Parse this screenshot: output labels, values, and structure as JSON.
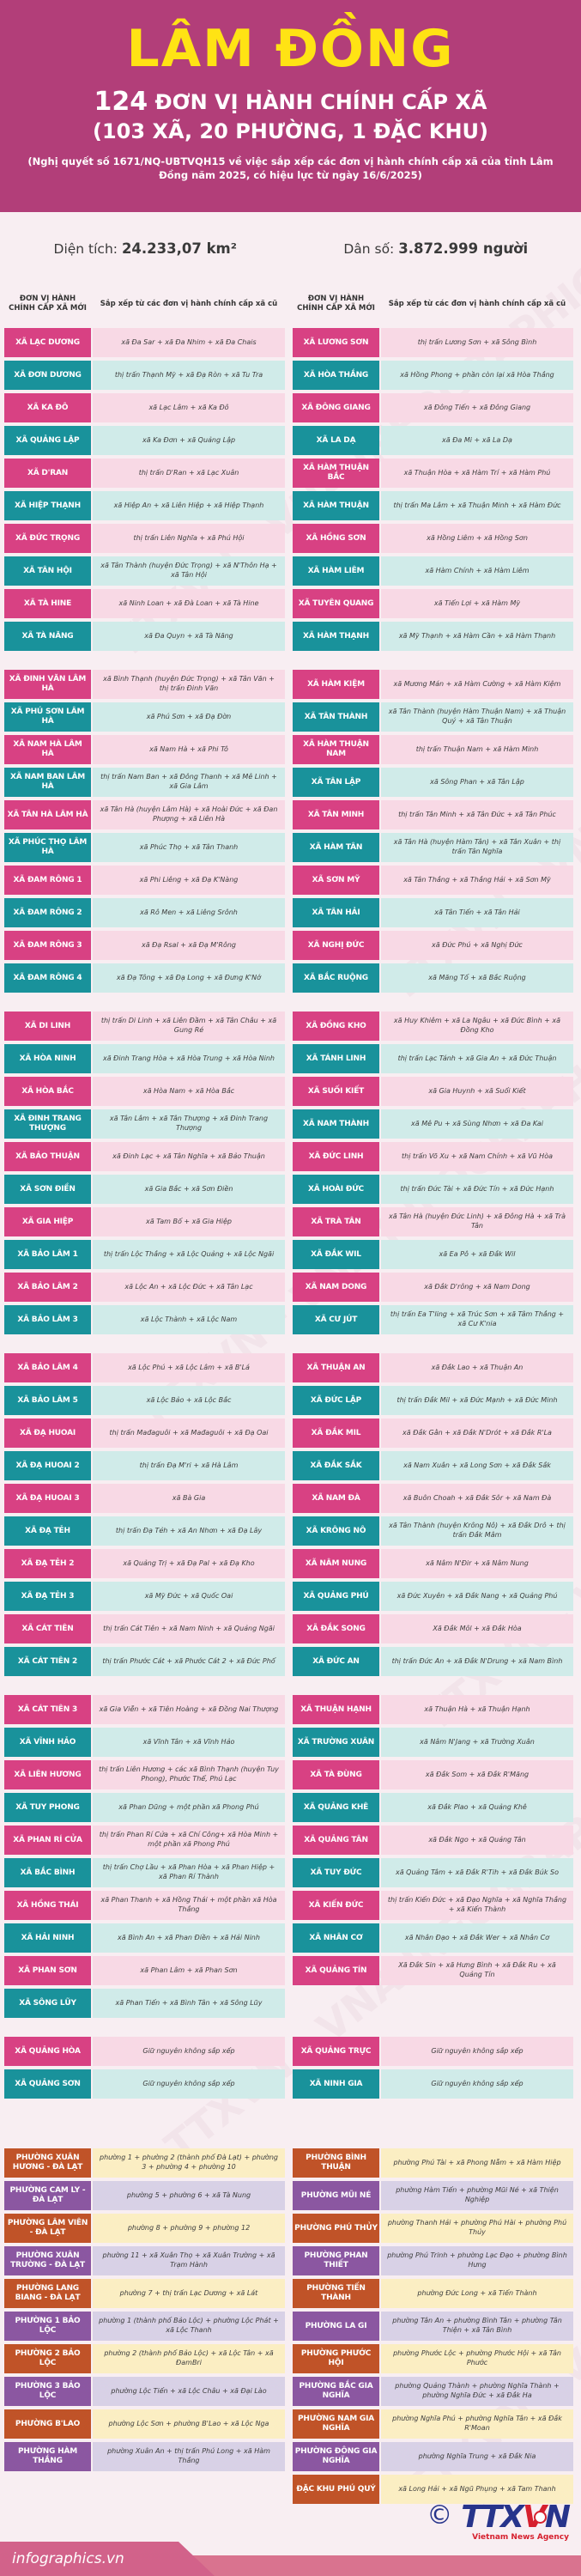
{
  "header": {
    "title": "LÂM ĐỒNG",
    "subtitle_count": "124",
    "subtitle_rest": "ĐƠN VỊ HÀNH CHÍNH CẤP XÃ",
    "subtitle_detail": "(103 XÃ, 20 PHƯỜNG, 1 ĐẶC KHU)",
    "note": "(Nghị quyết số 1671/NQ-UBTVQH15 về việc sắp xếp các đơn vị hành chính cấp xã của tỉnh Lâm Đồng năm 2025, có hiệu lực từ ngày 16/6/2025)"
  },
  "stats": {
    "area_label": "Diện tích:",
    "area_value": "24.233,07 km²",
    "pop_label": "Dân số:",
    "pop_value": "3.872.999 người"
  },
  "column_headers": {
    "new_unit": "ĐƠN VỊ HÀNH CHÍNH CẤP XÃ MỚI",
    "source_units": "Sắp xếp từ các đơn vị hành chính cấp xã cũ"
  },
  "commune_groups": [
    {
      "bands": [
        {
          "left": {
            "name": "XÃ LẠC DƯƠNG",
            "from": "xã Đa Sar + xã Đa Nhim + xã Đa Chais"
          },
          "right": {
            "name": "XÃ LƯƠNG SƠN",
            "from": "thị trấn Lương Sơn + xã Sông Bình"
          }
        },
        {
          "left": {
            "name": "XÃ ĐƠN DƯƠNG",
            "from": "thị trấn Thạnh Mỹ + xã Đạ Ròn + xã Tu Tra"
          },
          "right": {
            "name": "XÃ HÒA THẮNG",
            "from": "xã Hồng Phong + phần còn lại xã Hòa Thắng"
          }
        },
        {
          "left": {
            "name": "XÃ KA ĐÔ",
            "from": "xã Lạc Lâm + xã Ka Đô"
          },
          "right": {
            "name": "XÃ ĐÔNG GIANG",
            "from": "xã Đông Tiến + xã Đông Giang"
          }
        },
        {
          "left": {
            "name": "XÃ QUẢNG LẬP",
            "from": "xã Ka Đơn + xã Quảng Lập"
          },
          "right": {
            "name": "XÃ LA DẠ",
            "from": "xã Đa Mi + xã La Dạ"
          }
        },
        {
          "left": {
            "name": "XÃ D'RAN",
            "from": "thị trấn D'Ran + xã Lạc Xuân"
          },
          "right": {
            "name": "XÃ HÀM THUẬN BẮC",
            "from": "xã Thuận Hòa + xã Hàm Trí + xã Hàm Phú"
          }
        },
        {
          "left": {
            "name": "XÃ HIỆP THẠNH",
            "from": "xã Hiệp An + xã Liên Hiệp + xã Hiệp Thạnh"
          },
          "right": {
            "name": "XÃ HÀM THUẬN",
            "from": "thị trấn Ma Lâm + xã Thuận Minh + xã Hàm Đức"
          }
        },
        {
          "left": {
            "name": "XÃ ĐỨC TRỌNG",
            "from": "thị trấn Liên Nghĩa + xã Phú Hội"
          },
          "right": {
            "name": "XÃ HỒNG SƠN",
            "from": "xã Hồng Liêm + xã Hồng Sơn"
          }
        },
        {
          "left": {
            "name": "XÃ TÂN HỘI",
            "from": "xã Tân Thành (huyện Đức Trọng) + xã N'Thôn Hạ + xã Tân Hội"
          },
          "right": {
            "name": "XÃ HÀM LIÊM",
            "from": "xã Hàm Chính + xã Hàm Liêm"
          }
        },
        {
          "left": {
            "name": "XÃ TÀ HINE",
            "from": "xã Ninh Loan + xã Đà Loan + xã Tà Hine"
          },
          "right": {
            "name": "XÃ TUYÊN QUANG",
            "from": "xã Tiến Lợi + xã Hàm Mỹ"
          }
        },
        {
          "left": {
            "name": "XÃ TÀ NĂNG",
            "from": "xã Đa Quyn +  xã Tà Năng"
          },
          "right": {
            "name": "XÃ HÀM THẠNH",
            "from": "xã Mỹ Thạnh + xã Hàm Cần + xã Hàm Thạnh"
          }
        }
      ]
    },
    {
      "bands": [
        {
          "left": {
            "name": "XÃ ĐINH VĂN LÂM HÀ",
            "from": "xã Bình Thạnh (huyện Đức Trọng) + xã Tân Văn + thị trấn Đinh Văn"
          },
          "right": {
            "name": "XÃ HÀM KIỆM",
            "from": "xã Mương Mán + xã Hàm Cường + xã Hàm Kiệm"
          }
        },
        {
          "left": {
            "name": "XÃ PHÚ SƠN LÂM HÀ",
            "from": "xã Phú Sơn + xã Đạ Đờn"
          },
          "right": {
            "name": "XÃ TÂN THÀNH",
            "from": "xã Tân Thành (huyện Hàm Thuận Nam) + xã Thuận Quý + xã Tân Thuận"
          }
        },
        {
          "left": {
            "name": "XÃ NAM HÀ LÂM HÀ",
            "from": "xã Nam Hà + xã Phi Tô"
          },
          "right": {
            "name": "XÃ HÀM THUẬN NAM",
            "from": "thị trấn Thuận Nam + xã Hàm Minh"
          }
        },
        {
          "left": {
            "name": "XÃ NAM BAN LÂM HÀ",
            "from": "thị trấn Nam Ban + xã Đông Thanh + xã Mê Linh + xã Gia Lâm"
          },
          "right": {
            "name": "XÃ TÂN LẬP",
            "from": "xã Sông Phan + xã Tân Lập"
          }
        },
        {
          "left": {
            "name": "XÃ TÂN HÀ LÂM HÀ",
            "from": "xã Tân Hà (huyện Lâm Hà) + xã Hoài Đức + xã Đan Phượng + xã Liên Hà"
          },
          "right": {
            "name": "XÃ TÂN MINH",
            "from": "thị trấn Tân Minh + xã Tân Đức + xã Tân Phúc"
          }
        },
        {
          "left": {
            "name": "XÃ PHÚC THỌ LÂM HÀ",
            "from": "xã Phúc Thọ + xã Tân Thanh"
          },
          "right": {
            "name": "XÃ HÀM TÂN",
            "from": "xã Tân Hà (huyện Hàm Tân) + xã Tân Xuân + thị trấn Tân Nghĩa"
          }
        },
        {
          "left": {
            "name": "XÃ ĐAM RÔNG 1",
            "from": "xã Phi Liêng + xã Đạ K'Nàng"
          },
          "right": {
            "name": "XÃ SƠN MỸ",
            "from": "xã Tân Thắng + xã Thắng Hải + xã Sơn Mỹ"
          }
        },
        {
          "left": {
            "name": "XÃ ĐAM RÔNG 2",
            "from": "xã Rô Men + xã Liêng Srônh"
          },
          "right": {
            "name": "XÃ TÂN HẢI",
            "from": "xã Tân Tiến + xã Tân Hải"
          }
        },
        {
          "left": {
            "name": "XÃ ĐAM RÔNG 3",
            "from": "xã Đạ Rsal + xã Đạ M'Rông"
          },
          "right": {
            "name": "XÃ NGHỊ ĐỨC",
            "from": "xã Đức Phú + xã Nghị Đức"
          }
        },
        {
          "left": {
            "name": "XÃ ĐAM RÔNG 4",
            "from": "xã Đạ Tông + xã Đạ Long + xã Đưng K'Nớ"
          },
          "right": {
            "name": "XÃ BẮC RUỘNG",
            "from": "xã Măng Tố + xã Bắc Ruộng"
          }
        }
      ]
    },
    {
      "bands": [
        {
          "left": {
            "name": "XÃ DI LINH",
            "from": "thị trấn Di Linh + xã Liên Đầm + xã Tân Châu + xã Gung Ré"
          },
          "right": {
            "name": "XÃ ĐỒNG KHO",
            "from": "xã Huy Khiêm + xã La Ngâu + xã Đức Bình + xã Đồng Kho"
          }
        },
        {
          "left": {
            "name": "XÃ HÒA NINH",
            "from": "xã Đinh Trang Hòa + xã Hòa Trung + xã Hòa Ninh"
          },
          "right": {
            "name": "XÃ TÁNH LINH",
            "from": "thị trấn Lạc Tánh + xã Gia An + xã Đức Thuận"
          }
        },
        {
          "left": {
            "name": "XÃ HÒA BẮC",
            "from": "xã Hòa Nam + xã Hòa Bắc"
          },
          "right": {
            "name": "XÃ SUỐI KIẾT",
            "from": "xã Gia Huynh + xã Suối Kiết"
          }
        },
        {
          "left": {
            "name": "XÃ ĐINH TRANG THƯỢNG",
            "from": "xã Tân Lâm + xã Tân Thượng + xã Đinh Trang Thượng"
          },
          "right": {
            "name": "XÃ NAM THÀNH",
            "from": "xã Mê Pu + xã Sùng Nhơn + xã Đa Kai"
          }
        },
        {
          "left": {
            "name": "XÃ BẢO THUẬN",
            "from": "xã Đinh Lạc + xã Tân Nghĩa + xã Bảo Thuận"
          },
          "right": {
            "name": "XÃ ĐỨC LINH",
            "from": "thị trấn Võ Xu + xã Nam Chính + xã Vũ Hòa"
          }
        },
        {
          "left": {
            "name": "XÃ SƠN ĐIỀN",
            "from": "xã Gia Bắc + xã Sơn Điền"
          },
          "right": {
            "name": "XÃ HOÀI ĐỨC",
            "from": "thị trấn Đức Tài + xã Đức Tín + xã Đức Hạnh"
          }
        },
        {
          "left": {
            "name": "XÃ GIA HIỆP",
            "from": "xã Tam Bố + xã Gia Hiệp"
          },
          "right": {
            "name": "XÃ TRÀ TÂN",
            "from": "xã Tân Hà (huyện Đức Linh) + xã Đông Hà + xã Trà Tân"
          }
        },
        {
          "left": {
            "name": "XÃ BẢO LÂM 1",
            "from": "thị trấn Lộc Thắng + xã Lộc Quảng + xã Lộc Ngãi"
          },
          "right": {
            "name": "XÃ ĐẮK WIL",
            "from": "xã Ea Pô + xã Đắk Wil"
          }
        },
        {
          "left": {
            "name": "XÃ BẢO LÂM 2",
            "from": "xã Lộc An + xã Lộc Đức + xã Tân Lạc"
          },
          "right": {
            "name": "XÃ NAM DONG",
            "from": "xã Đắk D'rông + xã Nam Dong"
          }
        },
        {
          "left": {
            "name": "XÃ BẢO LÂM 3",
            "from": "xã Lộc Thành + xã Lộc Nam"
          },
          "right": {
            "name": "XÃ CƯ JÚT",
            "from": "thị trấn Ea T'ling + xã Trúc Sơn + xã Tâm Thắng + xã Cư K'nia"
          }
        }
      ]
    },
    {
      "bands": [
        {
          "left": {
            "name": "XÃ BẢO LÂM 4",
            "from": "xã Lộc Phú + xã Lộc Lâm + xã B'Lá"
          },
          "right": {
            "name": "XÃ THUẬN AN",
            "from": "xã Đắk Lao + xã Thuận An"
          }
        },
        {
          "left": {
            "name": "XÃ BẢO LÂM 5",
            "from": "xã Lộc Bảo + xã Lộc Bắc"
          },
          "right": {
            "name": "XÃ ĐỨC LẬP",
            "from": "thị trấn Đắk Mil + xã Đức Mạnh + xã Đức Minh"
          }
        },
        {
          "left": {
            "name": "XÃ ĐẠ HUOAI",
            "from": "thị trấn Mađaguôi + xã Mađaguôi + xã Đạ Oai"
          },
          "right": {
            "name": "XÃ ĐẮK MIL",
            "from": "xã Đắk Gằn + xã Đắk N'Drót + xã Đắk R'La"
          }
        },
        {
          "left": {
            "name": "XÃ ĐẠ HUOAI 2",
            "from": "thị trấn Đạ M'ri + xã Hà Lâm"
          },
          "right": {
            "name": "XÃ ĐẮK SẮK",
            "from": "xã Nam Xuân + xã Long Sơn + xã Đắk Sắk"
          }
        },
        {
          "left": {
            "name": "XÃ ĐẠ HUOAI 3",
            "from": "xã Bà Gia"
          },
          "right": {
            "name": "XÃ NAM ĐÀ",
            "from": "xã Buôn Choah + xã Đắk Sôr + xã Nam Đà"
          }
        },
        {
          "left": {
            "name": "XÃ ĐẠ TẺH",
            "from": "thị trấn Đạ Tẻh + xã An Nhơn + xã Đạ Lây"
          },
          "right": {
            "name": "XÃ KRÔNG NÔ",
            "from": "xã Tân Thành (huyện Krông Nô) + xã Đắk Drô + thị trấn Đắk Mâm"
          }
        },
        {
          "left": {
            "name": "XÃ ĐẠ TẺH 2",
            "from": "xã Quảng Trị + xã Đạ Pal + xã Đạ Kho"
          },
          "right": {
            "name": "XÃ NÂM NUNG",
            "from": "xã Nâm N'Đir + xã Nâm Nung"
          }
        },
        {
          "left": {
            "name": "XÃ ĐẠ TẺH 3",
            "from": "xã Mỹ Đức + xã Quốc Oai"
          },
          "right": {
            "name": "XÃ QUẢNG PHÚ",
            "from": "xã Đức Xuyên + xã Đắk Nang + xã Quảng Phú"
          }
        },
        {
          "left": {
            "name": "XÃ CÁT TIÊN",
            "from": "thị trấn Cát Tiên + xã Nam Ninh + xã Quảng Ngãi"
          },
          "right": {
            "name": "XÃ ĐẮK SONG",
            "from": "Xã Đắk Môl + xã Đắk Hòa"
          }
        },
        {
          "left": {
            "name": "XÃ CÁT TIÊN 2",
            "from": "thị trấn Phước Cát + xã Phước Cát 2 + xã Đức Phổ"
          },
          "right": {
            "name": "XÃ ĐỨC AN",
            "from": "thị trấn Đức An + xã Đắk N'Drung + xã Nam Bình"
          }
        }
      ]
    },
    {
      "bands": [
        {
          "left": {
            "name": "XÃ CÁT TIÊN 3",
            "from": "xã Gia Viễn + xã Tiên Hoàng + xã Đồng Nai Thượng"
          },
          "right": {
            "name": "XÃ THUẬN HẠNH",
            "from": "xã Thuận Hà + xã Thuận Hạnh"
          }
        },
        {
          "left": {
            "name": "XÃ VĨNH HẢO",
            "from": "xã Vĩnh Tân + xã Vĩnh Hảo"
          },
          "right": {
            "name": "XÃ TRƯỜNG XUÂN",
            "from": "xã Nâm N'Jang + xã Trường Xuân"
          }
        },
        {
          "left": {
            "name": "XÃ LIÊN HƯƠNG",
            "from": "thị trấn Liên Hương + các xã Bình Thạnh (huyện Tuy Phong), Phước Thể, Phú Lạc"
          },
          "right": {
            "name": "XÃ TÀ ĐÙNG",
            "from": "xã Đắk Som + xã Đắk R'Măng"
          }
        },
        {
          "left": {
            "name": "XÃ TUY PHONG",
            "from": "xã Phan Dũng + một phần xã Phong Phú"
          },
          "right": {
            "name": "XÃ QUẢNG KHÊ",
            "from": "xã Đắk Plao + xã Quảng Khê"
          }
        },
        {
          "left": {
            "name": "XÃ PHAN RÍ CỬA",
            "from": "thị trấn Phan Rí Cửa + xã Chí Công+ xã Hòa Minh + một phần xã Phong Phú"
          },
          "right": {
            "name": "XÃ QUẢNG TÂN",
            "from": "xã Đắk Ngo + xã Quảng Tân"
          }
        },
        {
          "left": {
            "name": "XÃ BẮC BÌNH",
            "from": "thị trấn Chợ Lầu + xã Phan Hòa + xã Phan Hiệp + xã Phan Rí Thành"
          },
          "right": {
            "name": "XÃ TUY ĐỨC",
            "from": "xã Quảng Tâm + xã Đắk R'Tih + xã Đắk Búk So"
          }
        },
        {
          "left": {
            "name": "XÃ HỒNG THÁI",
            "from": "xã Phan Thanh + xã Hồng Thái + một phần xã Hòa Thắng"
          },
          "right": {
            "name": "XÃ KIẾN ĐỨC",
            "from": "thị trấn Kiến Đức + xã Đạo Nghĩa + xã Nghĩa Thắng + xã Kiến Thành"
          }
        },
        {
          "left": {
            "name": "XÃ HẢI NINH",
            "from": "xã Bình An + xã Phan Điền + xã Hải Ninh"
          },
          "right": {
            "name": "XÃ NHÂN CƠ",
            "from": "xã Nhân Đạo + xã Đắk Wer + xã Nhân Cơ"
          }
        },
        {
          "left": {
            "name": "XÃ PHAN SƠN",
            "from": "xã Phan Lâm + xã Phan Sơn"
          },
          "right": {
            "name": "XÃ QUẢNG TÍN",
            "from": "Xã Đắk Sin + xã Hưng Bình + xã Đắk Ru + xã Quảng Tín"
          }
        },
        {
          "left": {
            "name": "XÃ SÔNG LŨY",
            "from": "xã Phan Tiến + xã Bình Tân + xã Sông Lũy"
          },
          "right": null
        }
      ]
    },
    {
      "bands": [
        {
          "left": {
            "name": "XÃ QUẢNG HÒA",
            "from": "Giữ nguyên không sắp xếp"
          },
          "right": {
            "name": "XÃ QUẢNG TRỰC",
            "from": "Giữ nguyên không sắp xếp"
          }
        },
        {
          "left": {
            "name": "XÃ QUẢNG SƠN",
            "from": "Giữ nguyên không sắp xếp"
          },
          "right": {
            "name": "XÃ NINH GIA",
            "from": "Giữ nguyên không sắp xếp"
          }
        }
      ]
    }
  ],
  "ward_bands": [
    {
      "left": {
        "name": "PHƯỜNG XUÂN HƯƠNG - ĐÀ LẠT",
        "from": "phường 1 + phường 2 (thành phố Đà Lạt) + phường 3 + phường 4 + phường 10"
      },
      "right": {
        "name": "PHƯỜNG BÌNH THUẬN",
        "from": "phường Phú Tài + xã Phong Nẫm + xã Hàm Hiệp"
      }
    },
    {
      "left": {
        "name": "PHƯỜNG CAM LY - ĐÀ LẠT",
        "from": "phường 5 + phường 6 + xã Tà Nung"
      },
      "right": {
        "name": "PHƯỜNG MŨI NÉ",
        "from": "phường Hàm Tiến + phường Mũi Né + xã Thiện Nghiệp"
      }
    },
    {
      "left": {
        "name": "PHƯỜNG LÂM VIÊN - ĐÀ LẠT",
        "from": "phường 8 + phường 9 + phường 12"
      },
      "right": {
        "name": "PHƯỜNG PHÚ THỦY",
        "from": "phường Thanh Hải + phường Phú Hài + phường Phú Thủy"
      }
    },
    {
      "left": {
        "name": "PHƯỜNG XUÂN TRƯỜNG - ĐÀ LẠT",
        "from": "phường 11 + xã Xuân Thọ + xã Xuân Trường + xã Trạm Hành"
      },
      "right": {
        "name": "PHƯỜNG PHAN THIẾT",
        "from": "phường Phú Trinh + phường Lạc Đạo + phường Bình Hưng"
      }
    },
    {
      "left": {
        "name": "PHƯỜNG LANG BIANG - ĐÀ LẠT",
        "from": "phường 7 + thị trấn Lạc Dương + xã Lát"
      },
      "right": {
        "name": "PHƯỜNG TIẾN THÀNH",
        "from": "phường Đức Long + xã Tiến Thành"
      }
    },
    {
      "left": {
        "name": "PHƯỜNG 1 BẢO LỘC",
        "from": "phường 1 (thành phố Bảo Lộc) + phường Lộc Phát + xã Lộc Thanh"
      },
      "right": {
        "name": "PHƯỜNG LA GI",
        "from": "phường Tân An + phường Bình Tân + phường Tân Thiện + xã Tân Bình"
      }
    },
    {
      "left": {
        "name": "PHƯỜNG 2 BẢO LỘC",
        "from": "phường 2 (thành phố Bảo Lộc) + xã Lộc Tân + xã ĐamBri"
      },
      "right": {
        "name": "PHƯỜNG PHƯỚC HỘI",
        "from": "phường Phước Lộc + phường Phước Hội + xã Tân Phước"
      }
    },
    {
      "left": {
        "name": "PHƯỜNG 3 BẢO LỘC",
        "from": "phường Lộc Tiến + xã Lộc Châu + xã Đại Lào"
      },
      "right": {
        "name": "PHƯỜNG BẮC GIA NGHĨA",
        "from": "phường Quảng Thành + phường Nghĩa Thành + phường Nghĩa Đức + xã Đắk Ha"
      }
    },
    {
      "left": {
        "name": "PHƯỜNG B'LAO",
        "from": "phường Lộc Sơn + phường B'Lao + xã Lộc Nga"
      },
      "right": {
        "name": "PHƯỜNG NAM GIA NGHĨA",
        "from": "phường Nghĩa Phú + phường Nghĩa Tân + xã Đắk R'Moan"
      }
    },
    {
      "left": {
        "name": "PHƯỜNG HÀM THẮNG",
        "from": "phường Xuân An + thị trấn Phú Long + xã Hàm Thắng"
      },
      "right": {
        "name": "PHƯỜNG ĐÔNG GIA NGHĨA",
        "from": "phường Nghĩa Trung + xã Đắk Nia"
      }
    },
    {
      "left": null,
      "right": {
        "name": "ĐẶC KHU PHÚ QUÝ",
        "from": "xã Long Hải + xã Ngũ Phụng + xã Tam Thanh"
      }
    }
  ],
  "footer": {
    "site": "infographics.vn",
    "copyright_symbol": "©",
    "agency_t1": "TT",
    "agency_x": "X",
    "agency_v": "V",
    "agency_n": "N",
    "agency_sub": "Vietnam News Agency"
  },
  "watermark_text": "TTXVN - VNA  INFOGRAPHICS",
  "colors": {
    "header_bg": "#b23e79",
    "title": "#ffe314",
    "commune_a_name": "#d84183",
    "commune_a_bg": "#f8d9e5",
    "commune_b_name": "#19929b",
    "commune_b_bg": "#d0ebe9",
    "ward_a_name": "#c05328",
    "ward_a_bg": "#fbeec3",
    "ward_b_name": "#8b57a1",
    "ward_b_bg": "#d8d1e6"
  }
}
